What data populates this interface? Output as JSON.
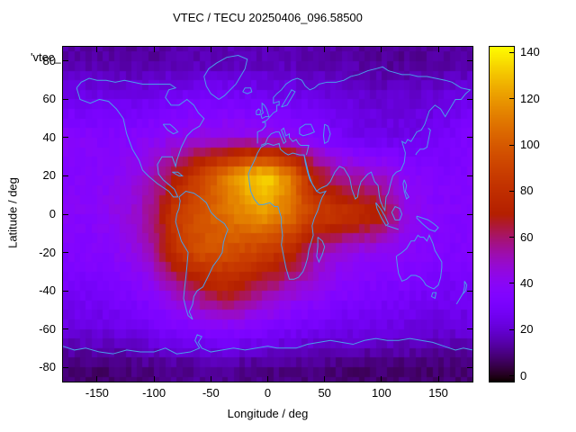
{
  "chart_data": {
    "type": "heatmap",
    "title": "VTEC / TECU 20250406_096.58500",
    "series_key": "'vtec_",
    "xlabel": "Longitude / deg",
    "ylabel": "Latitude / deg",
    "x_range": [
      -180,
      180
    ],
    "y_range": [
      -87.5,
      87.5
    ],
    "x_ticks": [
      -150,
      -100,
      -50,
      0,
      50,
      100,
      150
    ],
    "y_ticks": [
      -80,
      -60,
      -40,
      -20,
      0,
      20,
      40,
      60,
      80
    ],
    "cb_ticks": [
      0,
      20,
      40,
      60,
      80,
      100,
      120,
      140
    ],
    "cb_range": [
      -2.5,
      142.5
    ],
    "palette": "gnuplot-default black-violet-red-orange-yellow",
    "overlay": "world coastlines in light blue",
    "grid_lon": [
      -180,
      -160,
      -140,
      -120,
      -100,
      -80,
      -60,
      -40,
      -20,
      0,
      20,
      40,
      60,
      80,
      100,
      120,
      140,
      160,
      180
    ],
    "grid_lat": [
      80,
      60,
      40,
      20,
      0,
      -20,
      -40,
      -60,
      -80
    ],
    "values_tecu": [
      [
        14,
        14,
        13,
        13,
        13,
        14,
        15,
        16,
        16,
        16,
        15,
        15,
        14,
        13,
        12,
        12,
        12,
        13,
        14
      ],
      [
        26,
        25,
        25,
        25,
        27,
        29,
        30,
        30,
        29,
        27,
        26,
        24,
        22,
        21,
        20,
        20,
        21,
        23,
        25
      ],
      [
        38,
        37,
        36,
        37,
        39,
        42,
        44,
        45,
        44,
        42,
        40,
        36,
        30,
        26,
        24,
        24,
        26,
        30,
        34
      ],
      [
        36,
        37,
        39,
        43,
        52,
        68,
        90,
        108,
        128,
        135,
        112,
        72,
        56,
        52,
        48,
        40,
        36,
        34,
        35
      ],
      [
        38,
        38,
        41,
        46,
        58,
        88,
        98,
        106,
        116,
        120,
        108,
        90,
        84,
        80,
        72,
        46,
        38,
        35,
        36
      ],
      [
        35,
        35,
        37,
        42,
        55,
        82,
        96,
        96,
        92,
        86,
        76,
        56,
        46,
        42,
        40,
        38,
        35,
        33,
        34
      ],
      [
        29,
        29,
        31,
        34,
        40,
        50,
        62,
        72,
        66,
        56,
        48,
        42,
        37,
        34,
        32,
        31,
        29,
        28,
        29
      ],
      [
        22,
        22,
        23,
        25,
        28,
        32,
        35,
        37,
        35,
        32,
        29,
        27,
        25,
        24,
        23,
        22,
        21,
        21,
        22
      ],
      [
        8,
        8,
        8,
        9,
        10,
        11,
        12,
        12,
        11,
        10,
        10,
        9,
        9,
        8,
        8,
        8,
        8,
        8,
        8
      ]
    ],
    "colors": {
      "coastline": "#4aa0e8",
      "border": "#000000",
      "background": "#ffffff",
      "text": "#000000"
    }
  }
}
